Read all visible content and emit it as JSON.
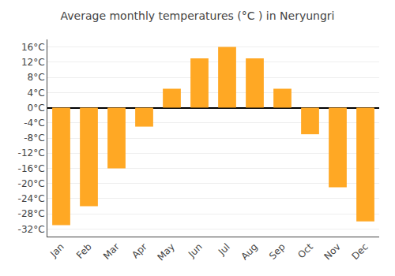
{
  "chart_data": {
    "type": "bar",
    "title": "Average monthly temperatures (°C ) in Neryungri",
    "categories": [
      "Jan",
      "Feb",
      "Mar",
      "Apr",
      "May",
      "Jun",
      "Jul",
      "Aug",
      "Sep",
      "Oct",
      "Nov",
      "Dec"
    ],
    "values": [
      -31,
      -26,
      -16,
      -5,
      5,
      13,
      16,
      13,
      5,
      -7,
      -21,
      -30
    ],
    "color": "#FFA824",
    "ylim": [
      -34,
      18
    ],
    "yticks": [
      {
        "value": -32,
        "label": "-32°C"
      },
      {
        "value": -28,
        "label": "-28°C"
      },
      {
        "value": -24,
        "label": "-24°C"
      },
      {
        "value": -20,
        "label": "-20°C"
      },
      {
        "value": -16,
        "label": "-16°C"
      },
      {
        "value": -12,
        "label": "-12°C"
      },
      {
        "value": -8,
        "label": "-8°C"
      },
      {
        "value": -4,
        "label": "-4°C"
      },
      {
        "value": 0,
        "label": "0°C"
      },
      {
        "value": 4,
        "label": "4°C"
      },
      {
        "value": 8,
        "label": "8°C"
      },
      {
        "value": 12,
        "label": "12°C"
      },
      {
        "value": 16,
        "label": "16°C"
      }
    ],
    "grid": true
  }
}
